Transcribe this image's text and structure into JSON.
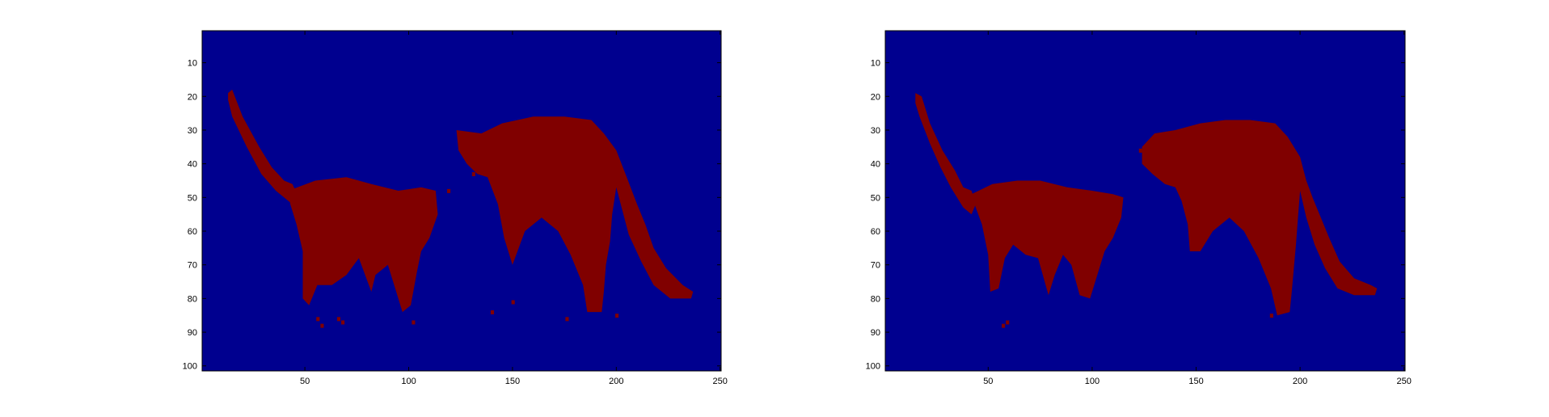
{
  "figure": {
    "background": "#ffffff",
    "colors": {
      "background_class": "#00008f",
      "mask_class": "#800000"
    }
  },
  "chart_data": [
    {
      "type": "heatmap",
      "title": "",
      "xlabel": "",
      "ylabel": "",
      "xlim": [
        0.5,
        250.5
      ],
      "ylim": [
        101.5,
        0.5
      ],
      "y_reversed": true,
      "xticks": [
        50,
        100,
        150,
        200,
        250
      ],
      "yticks": [
        10,
        20,
        30,
        40,
        50,
        60,
        70,
        80,
        90,
        100
      ],
      "grid": false,
      "values": [
        0,
        1
      ],
      "colormap": {
        "0": "#00008f",
        "1": "#800000"
      },
      "regions": [
        {
          "shape": "polygon",
          "label": "tail-left",
          "points": [
            [
              13,
              19
            ],
            [
              15,
              18
            ],
            [
              20,
              26
            ],
            [
              28,
              35
            ],
            [
              34,
              41
            ],
            [
              40,
              45
            ],
            [
              44,
              46
            ],
            [
              47,
              50
            ],
            [
              44,
              52
            ],
            [
              36,
              48
            ],
            [
              29,
              43
            ],
            [
              22,
              35
            ],
            [
              15,
              26
            ],
            [
              13,
              21
            ]
          ]
        },
        {
          "shape": "polygon",
          "label": "front-body",
          "points": [
            [
              42,
              48
            ],
            [
              55,
              45
            ],
            [
              70,
              44
            ],
            [
              82,
              46
            ],
            [
              95,
              48
            ],
            [
              106,
              47
            ],
            [
              113,
              48
            ],
            [
              114,
              55
            ],
            [
              110,
              62
            ],
            [
              106,
              66
            ],
            [
              104,
              72
            ],
            [
              101,
              82
            ],
            [
              97,
              84
            ],
            [
              94,
              78
            ],
            [
              90,
              70
            ],
            [
              84,
              73
            ],
            [
              82,
              78
            ],
            [
              76,
              68
            ],
            [
              70,
              73
            ],
            [
              63,
              76
            ],
            [
              56,
              76
            ],
            [
              52,
              82
            ],
            [
              49,
              80
            ],
            [
              49,
              66
            ],
            [
              46,
              58
            ],
            [
              43,
              52
            ]
          ]
        },
        {
          "shape": "polygon",
          "label": "hind-body",
          "points": [
            [
              123,
              30
            ],
            [
              135,
              31
            ],
            [
              145,
              28
            ],
            [
              160,
              26
            ],
            [
              175,
              26
            ],
            [
              188,
              27
            ],
            [
              194,
              31
            ],
            [
              200,
              36
            ],
            [
              205,
              44
            ],
            [
              210,
              52
            ],
            [
              214,
              58
            ],
            [
              218,
              65
            ],
            [
              224,
              71
            ],
            [
              232,
              76
            ],
            [
              237,
              78
            ],
            [
              236,
              80
            ],
            [
              226,
              80
            ],
            [
              218,
              76
            ],
            [
              212,
              69
            ],
            [
              206,
              61
            ],
            [
              203,
              54
            ],
            [
              200,
              47
            ],
            [
              198,
              55
            ],
            [
              197,
              63
            ],
            [
              195,
              70
            ],
            [
              194,
              78
            ],
            [
              193,
              84
            ],
            [
              186,
              84
            ],
            [
              184,
              76
            ],
            [
              178,
              67
            ],
            [
              172,
              60
            ],
            [
              164,
              56
            ],
            [
              156,
              60
            ],
            [
              150,
              70
            ],
            [
              146,
              62
            ],
            [
              143,
              52
            ],
            [
              138,
              44
            ],
            [
              133,
              43
            ],
            [
              128,
              40
            ],
            [
              124,
              36
            ]
          ]
        }
      ],
      "speckles": [
        {
          "x": 56,
          "y": 86
        },
        {
          "x": 58,
          "y": 88
        },
        {
          "x": 66,
          "y": 86
        },
        {
          "x": 68,
          "y": 87
        },
        {
          "x": 140,
          "y": 84
        },
        {
          "x": 150,
          "y": 81
        },
        {
          "x": 176,
          "y": 86
        },
        {
          "x": 200,
          "y": 85
        },
        {
          "x": 102,
          "y": 87
        },
        {
          "x": 131,
          "y": 43
        },
        {
          "x": 119,
          "y": 48
        }
      ]
    },
    {
      "type": "heatmap",
      "title": "",
      "xlabel": "",
      "ylabel": "",
      "xlim": [
        0.5,
        250.5
      ],
      "ylim": [
        101.5,
        0.5
      ],
      "y_reversed": true,
      "xticks": [
        50,
        100,
        150,
        200,
        250
      ],
      "yticks": [
        10,
        20,
        30,
        40,
        50,
        60,
        70,
        80,
        90,
        100
      ],
      "grid": false,
      "values": [
        0,
        1
      ],
      "colormap": {
        "0": "#00008f",
        "1": "#800000"
      },
      "regions": [
        {
          "shape": "polygon",
          "label": "tail-left",
          "points": [
            [
              15,
              19
            ],
            [
              18,
              20
            ],
            [
              22,
              28
            ],
            [
              28,
              36
            ],
            [
              34,
              42
            ],
            [
              38,
              47
            ],
            [
              42,
              48
            ],
            [
              44,
              52
            ],
            [
              42,
              55
            ],
            [
              38,
              53
            ],
            [
              32,
              47
            ],
            [
              27,
              41
            ],
            [
              22,
              34
            ],
            [
              17,
              26
            ],
            [
              15,
              22
            ]
          ]
        },
        {
          "shape": "polygon",
          "label": "front-body",
          "points": [
            [
              42,
              49
            ],
            [
              52,
              46
            ],
            [
              64,
              45
            ],
            [
              75,
              45
            ],
            [
              88,
              47
            ],
            [
              100,
              48
            ],
            [
              110,
              49
            ],
            [
              115,
              50
            ],
            [
              114,
              56
            ],
            [
              110,
              62
            ],
            [
              106,
              66
            ],
            [
              103,
              72
            ],
            [
              99,
              80
            ],
            [
              94,
              79
            ],
            [
              90,
              70
            ],
            [
              86,
              67
            ],
            [
              82,
              73
            ],
            [
              79,
              79
            ],
            [
              74,
              68
            ],
            [
              68,
              67
            ],
            [
              62,
              64
            ],
            [
              58,
              68
            ],
            [
              55,
              77
            ],
            [
              51,
              78
            ],
            [
              50,
              67
            ],
            [
              47,
              58
            ],
            [
              44,
              53
            ]
          ]
        },
        {
          "shape": "polygon",
          "label": "hind-body",
          "points": [
            [
              124,
              35
            ],
            [
              130,
              31
            ],
            [
              140,
              30
            ],
            [
              152,
              28
            ],
            [
              164,
              27
            ],
            [
              176,
              27
            ],
            [
              188,
              28
            ],
            [
              194,
              32
            ],
            [
              200,
              38
            ],
            [
              203,
              45
            ],
            [
              206,
              50
            ],
            [
              210,
              56
            ],
            [
              214,
              62
            ],
            [
              219,
              69
            ],
            [
              226,
              74
            ],
            [
              234,
              76
            ],
            [
              237,
              77
            ],
            [
              236,
              79
            ],
            [
              226,
              79
            ],
            [
              218,
              77
            ],
            [
              212,
              71
            ],
            [
              207,
              64
            ],
            [
              203,
              56
            ],
            [
              200,
              48
            ],
            [
              199,
              56
            ],
            [
              198,
              64
            ],
            [
              197,
              71
            ],
            [
              196,
              78
            ],
            [
              195,
              84
            ],
            [
              189,
              85
            ],
            [
              186,
              77
            ],
            [
              180,
              68
            ],
            [
              173,
              60
            ],
            [
              166,
              56
            ],
            [
              158,
              60
            ],
            [
              152,
              66
            ],
            [
              147,
              66
            ],
            [
              146,
              58
            ],
            [
              143,
              51
            ],
            [
              140,
              47
            ],
            [
              135,
              46
            ],
            [
              129,
              43
            ],
            [
              124,
              40
            ]
          ]
        }
      ],
      "speckles": [
        {
          "x": 57,
          "y": 88
        },
        {
          "x": 59,
          "y": 87
        },
        {
          "x": 186,
          "y": 85
        },
        {
          "x": 123,
          "y": 36
        }
      ]
    }
  ]
}
